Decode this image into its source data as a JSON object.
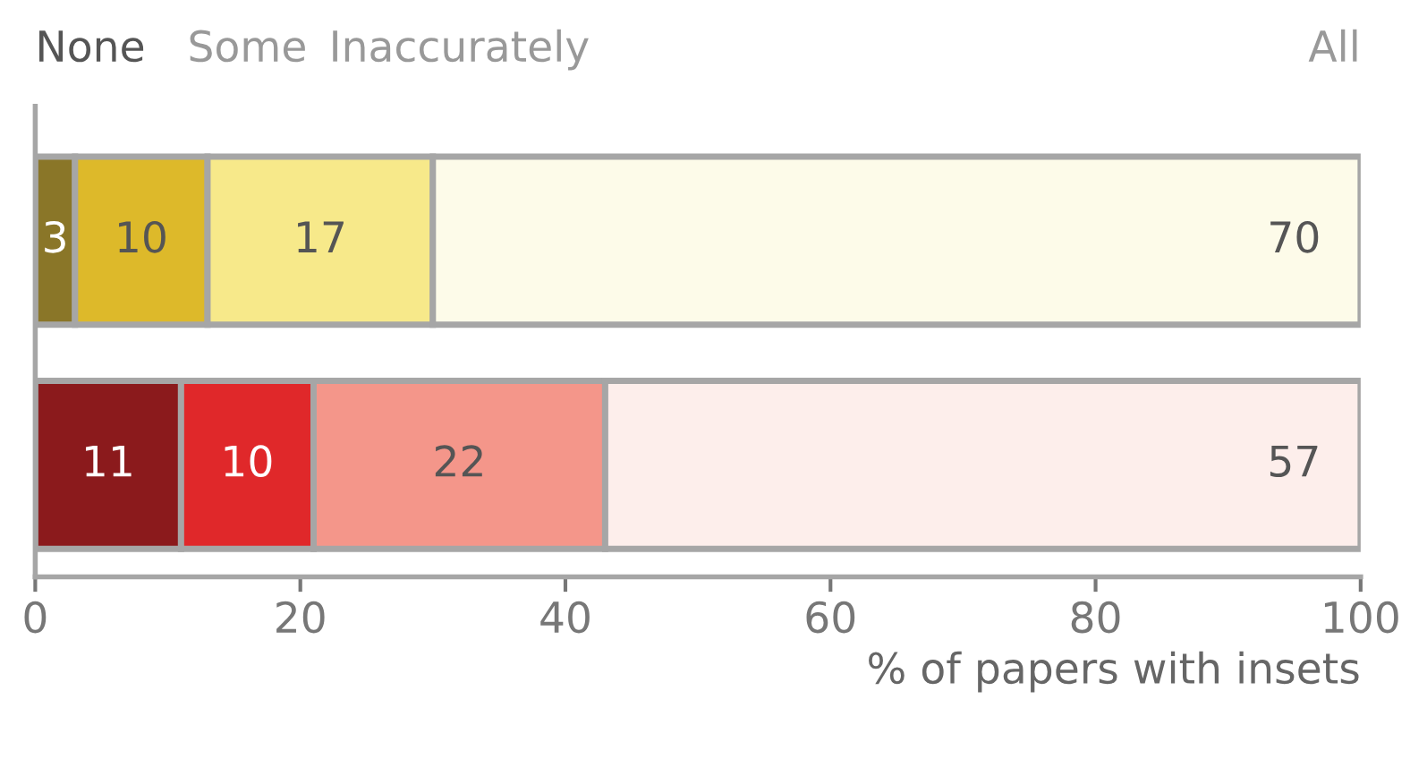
{
  "chart_data": {
    "type": "bar",
    "orientation": "horizontal",
    "stacked": true,
    "xlabel": "% of papers with insets",
    "categories": [
      null,
      null
    ],
    "series": [
      {
        "name": "None",
        "colors": [
          "#8a7628",
          "#8b1a1c"
        ],
        "values": [
          3,
          11
        ]
      },
      {
        "name": "Some",
        "colors": [
          "#ddb92a",
          "#e0282a"
        ],
        "values": [
          10,
          10
        ]
      },
      {
        "name": "Inaccurately",
        "colors": [
          "#f7e98a",
          "#f4968a"
        ],
        "values": [
          17,
          22
        ]
      },
      {
        "name": "All",
        "colors": [
          "#fdfbe9",
          "#fdeeeb"
        ],
        "values": [
          70,
          57
        ]
      }
    ],
    "xlim": [
      0,
      100
    ],
    "xticks": [
      0,
      20,
      40,
      60,
      80,
      100
    ],
    "data_labels": true,
    "legend": "top",
    "grid": false
  }
}
